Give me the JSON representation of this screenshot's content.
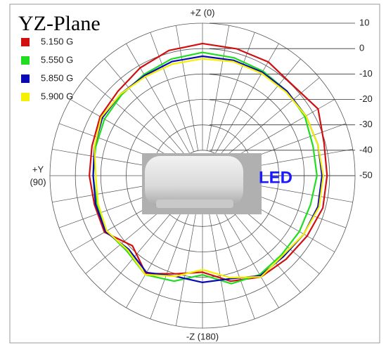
{
  "chart_data": {
    "type": "polar",
    "title": "YZ-Plane",
    "top_label": "+Z (0)",
    "left_label": [
      "+Y",
      "(90)"
    ],
    "bottom_label": "-Z (180)",
    "image_label": "LED",
    "theta": [
      0,
      15,
      30,
      45,
      60,
      75,
      90,
      105,
      120,
      135,
      150,
      165,
      180,
      195,
      210,
      225,
      240,
      255,
      270,
      285,
      300,
      315,
      330,
      345
    ],
    "rlim": [
      -50,
      10
    ],
    "rticks": [
      10,
      0,
      -10,
      -20,
      -30,
      -40,
      -50
    ],
    "grid": true,
    "series": [
      {
        "name": "5.150 G",
        "color": "#d01010",
        "values": [
          2,
          1,
          -1,
          -3,
          -3.5,
          -5,
          -5.5,
          -6,
          -5.5,
          -11,
          -5.5,
          -10,
          -12,
          -7,
          -4,
          -3.5,
          -2.5,
          -1,
          -1,
          -0.5,
          2.5,
          0.3,
          1.7,
          1.7
        ]
      },
      {
        "name": "5.550 G",
        "color": "#20dd20",
        "values": [
          -1.5,
          -2.5,
          -4,
          -5,
          -5.5,
          -6.5,
          -7,
          -7,
          -6.5,
          -8,
          -5,
          -7,
          -11,
          -6,
          -5,
          -6,
          -6,
          -6,
          -5,
          -5,
          -3.5,
          -3,
          -2.5,
          -2
        ]
      },
      {
        "name": "5.850 G",
        "color": "#0a0ab4",
        "values": [
          -3,
          -3.5,
          -4.5,
          -4.5,
          -4.5,
          -6,
          -7,
          -6.5,
          -6,
          -9,
          -6,
          -9,
          -8,
          -8,
          -4.5,
          -5,
          -4,
          -3,
          -3,
          -3,
          -3,
          -3,
          -3,
          -3
        ]
      },
      {
        "name": "5.900 G",
        "color": "#f5f000",
        "values": [
          -4,
          -4.5,
          -5,
          -4.5,
          -4,
          -6,
          -8,
          -7.5,
          -6.5,
          -8.5,
          -5,
          -9,
          -13,
          -8.5,
          -4,
          -5.5,
          -4,
          -2.5,
          -2.5,
          -3,
          -3,
          -3.5,
          -3.5,
          -3.5
        ]
      }
    ]
  }
}
